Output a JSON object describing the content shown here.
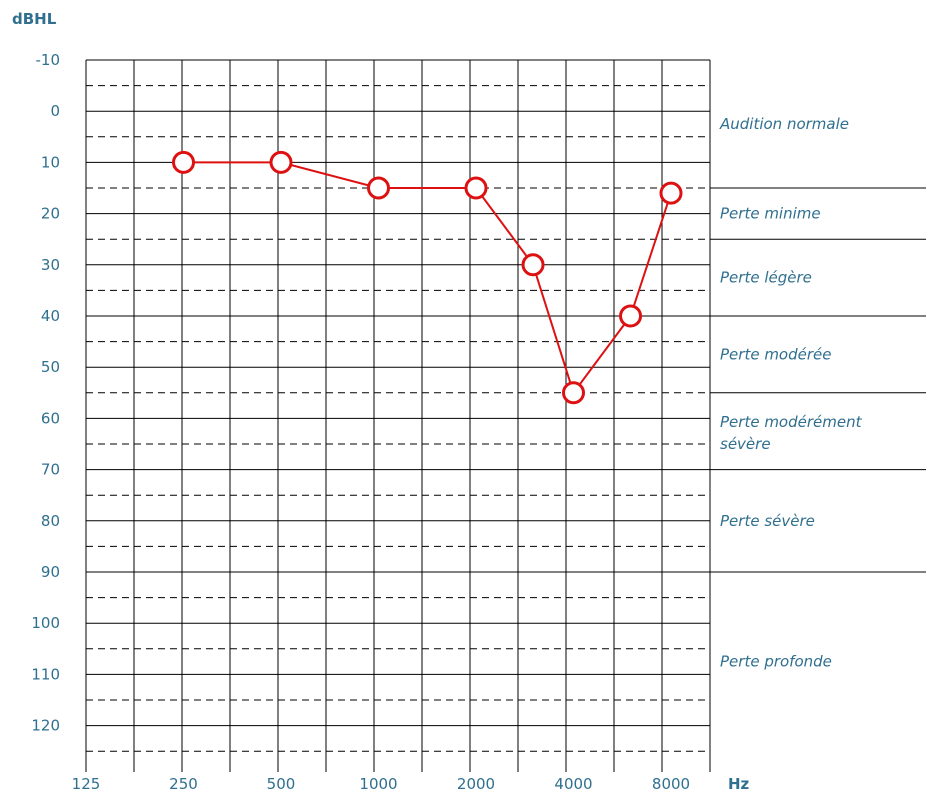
{
  "chart_data": {
    "type": "line",
    "ylabel": "dBHL",
    "xlabel": "Hz",
    "x_ticks": [
      "125",
      "250",
      "500",
      "1000",
      "2000",
      "4000",
      "8000"
    ],
    "x_scale": "log2",
    "xlim": [
      125,
      8000
    ],
    "y_ticks": [
      "-10",
      "0",
      "10",
      "20",
      "30",
      "40",
      "50",
      "60",
      "70",
      "80",
      "90",
      "100",
      "110",
      "120"
    ],
    "ylim": [
      -10,
      120
    ],
    "y_inverted": true,
    "grid": true,
    "series": [
      {
        "color": "#dd1111",
        "marker": "circle",
        "points": [
          {
            "x": 250,
            "y": 10
          },
          {
            "x": 500,
            "y": 10
          },
          {
            "x": 1000,
            "y": 15
          },
          {
            "x": 2000,
            "y": 15
          },
          {
            "x": 3000,
            "y": 30
          },
          {
            "x": 4000,
            "y": 55
          },
          {
            "x": 6000,
            "y": 40
          },
          {
            "x": 8000,
            "y": 16
          }
        ]
      }
    ],
    "zones": [
      {
        "label": "Audition normale",
        "from": -10,
        "to": 15
      },
      {
        "label": "Perte minime",
        "from": 15,
        "to": 25
      },
      {
        "label": "Perte légère",
        "from": 25,
        "to": 40
      },
      {
        "label": "Perte modérée",
        "from": 40,
        "to": 55
      },
      {
        "label": "Perte modérément sévère",
        "from": 55,
        "to": 70
      },
      {
        "label": "Perte sévère",
        "from": 70,
        "to": 90
      },
      {
        "label": "Perte profonde",
        "from": 90,
        "to": 125
      }
    ]
  }
}
